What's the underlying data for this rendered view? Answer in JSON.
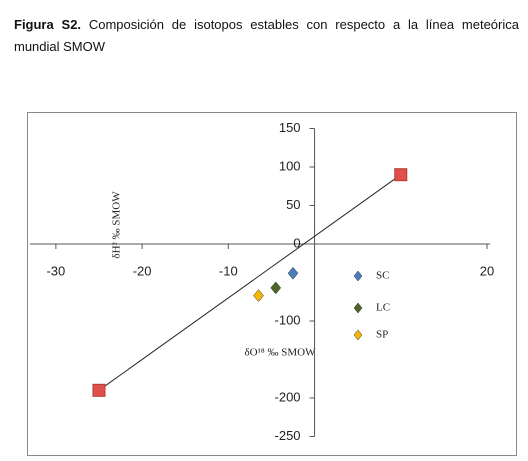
{
  "caption_label": "Figura S2.",
  "caption": "Composición de isotopos estables con respecto a la línea meteórica mundial SMOW",
  "chart_data": {
    "type": "scatter",
    "xlabel": "δO¹⁸ ‰ SMOW",
    "ylabel": "δH² ‰ SMOW",
    "xlim": [
      -33,
      20
    ],
    "ylim": [
      -250,
      150
    ],
    "xticks": [
      -30,
      -20,
      -10,
      20
    ],
    "yticks": [
      150,
      100,
      50,
      0,
      -100,
      -200,
      -250
    ],
    "series": [
      {
        "color": "#e0504a",
        "marker": "square",
        "line": true,
        "x": [
          10,
          -25
        ],
        "values": [
          90,
          -190
        ]
      },
      {
        "name": "SC",
        "color": "#4a7ebb",
        "marker": "diamond",
        "x": [
          -2.5
        ],
        "values": [
          -38
        ]
      },
      {
        "name": "LC",
        "color": "#4f6228",
        "marker": "diamond",
        "x": [
          -4.5
        ],
        "values": [
          -57
        ]
      },
      {
        "name": "SP",
        "color": "#f5b800",
        "marker": "diamond",
        "x": [
          -6.5
        ],
        "values": [
          -67
        ]
      }
    ]
  }
}
